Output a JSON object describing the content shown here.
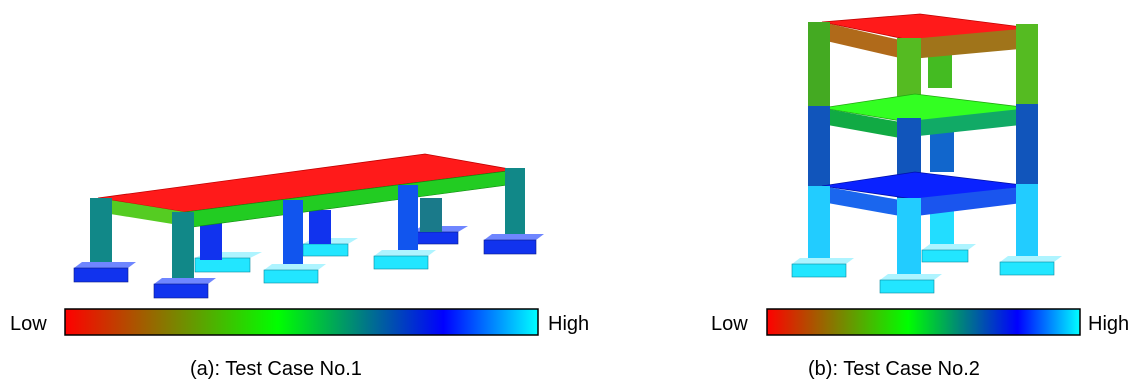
{
  "panels": [
    {
      "caption": "(a): Test Case No.1",
      "colorbar": {
        "low_label": "Low",
        "high_label": "High"
      }
    },
    {
      "caption": "(b): Test Case No.2",
      "colorbar": {
        "low_label": "Low",
        "high_label": "High"
      }
    }
  ],
  "colormap": [
    "#ff0000",
    "#00ff00",
    "#0000ff",
    "#00ffff"
  ],
  "level_colors": {
    "red": "#ff1a1a",
    "green": "#22cc22",
    "teal": "#118888",
    "blue": "#1133ee",
    "cyan": "#11ccff"
  }
}
